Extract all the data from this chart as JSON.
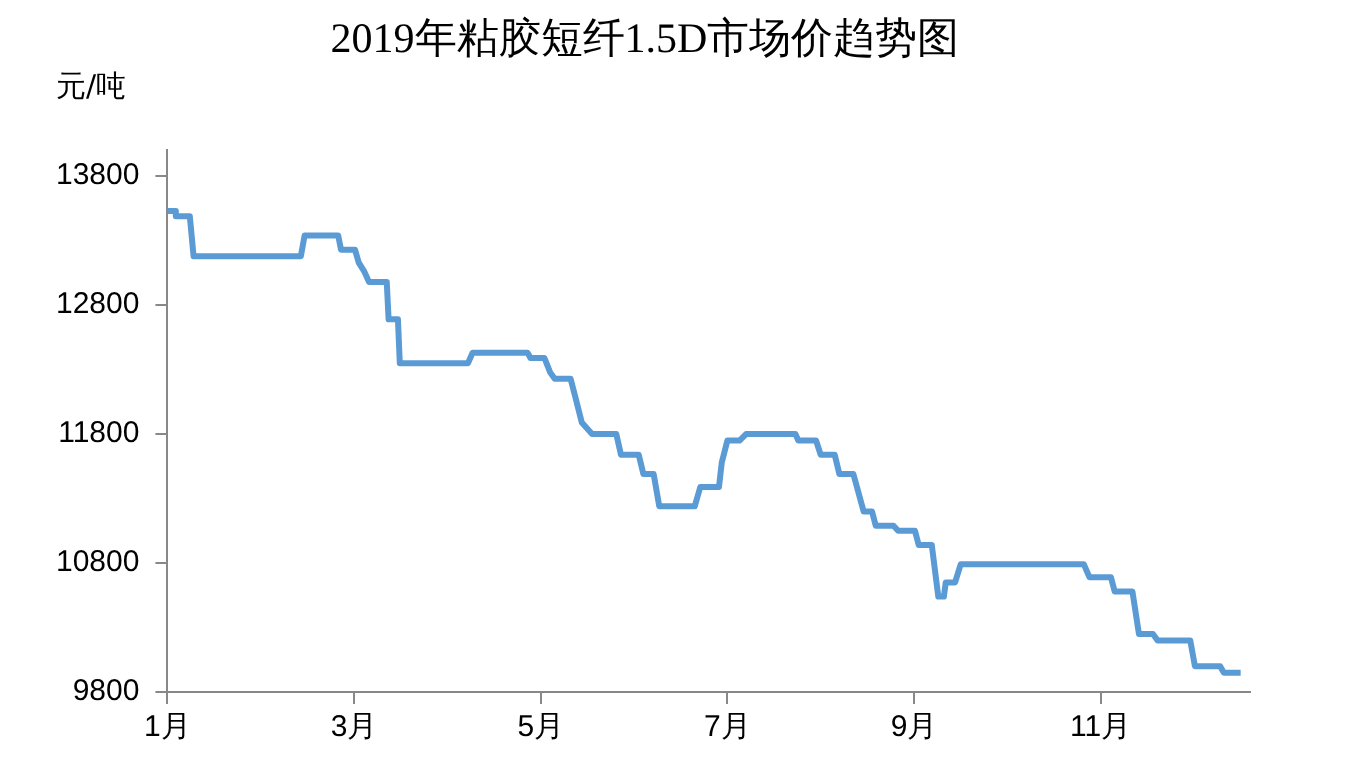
{
  "chart_data": {
    "type": "line",
    "title": "2019年粘胶短纤1.5D市场价趋势图",
    "ylabel": "元/吨",
    "series": [
      {
        "color": "#5b9bd5",
        "x": [
          1.0,
          1.09,
          1.09,
          1.24,
          1.28,
          2.43,
          2.47,
          2.83,
          2.86,
          3.01,
          3.05,
          3.11,
          3.16,
          3.35,
          3.37,
          3.47,
          3.49,
          4.22,
          4.27,
          4.86,
          4.89,
          5.04,
          5.1,
          5.15,
          5.32,
          5.37,
          5.44,
          5.55,
          5.81,
          5.86,
          6.05,
          6.1,
          6.21,
          6.27,
          6.65,
          6.71,
          6.91,
          6.94,
          7.0,
          7.13,
          7.2,
          7.73,
          7.76,
          7.95,
          8.0,
          8.15,
          8.2,
          8.35,
          8.46,
          8.55,
          8.59,
          8.78,
          8.83,
          9.01,
          9.05,
          9.19,
          9.26,
          9.32,
          9.34,
          9.44,
          9.5,
          10.82,
          10.88,
          11.11,
          11.15,
          11.34,
          11.41,
          11.56,
          11.61,
          11.96,
          12.01,
          12.28,
          12.32,
          12.5
        ],
        "values": [
          13530,
          13530,
          13490,
          13490,
          13180,
          13180,
          13340,
          13340,
          13230,
          13230,
          13130,
          13060,
          12980,
          12980,
          12690,
          12690,
          12350,
          12350,
          12430,
          12430,
          12390,
          12390,
          12280,
          12230,
          12230,
          12090,
          11890,
          11800,
          11800,
          11640,
          11640,
          11490,
          11490,
          11240,
          11240,
          11390,
          11390,
          11580,
          11750,
          11750,
          11800,
          11800,
          11750,
          11750,
          11640,
          11640,
          11490,
          11490,
          11200,
          11200,
          11090,
          11090,
          11050,
          11050,
          10940,
          10940,
          10540,
          10540,
          10650,
          10650,
          10790,
          10790,
          10690,
          10690,
          10580,
          10580,
          10250,
          10250,
          10200,
          10200,
          10000,
          10000,
          9950,
          9950
        ]
      }
    ],
    "xlim": [
      1,
      12.6
    ],
    "xticks": [
      {
        "value": 1,
        "label": "1月"
      },
      {
        "value": 3,
        "label": "3月"
      },
      {
        "value": 5,
        "label": "5月"
      },
      {
        "value": 7,
        "label": "7月"
      },
      {
        "value": 9,
        "label": "9月"
      },
      {
        "value": 11,
        "label": "11月"
      }
    ],
    "ylim": [
      9800,
      14000
    ],
    "yticks": [
      9800,
      10800,
      11800,
      12800,
      13800
    ],
    "grid": false,
    "legend": false,
    "marker": "none",
    "line_style": "solid"
  }
}
